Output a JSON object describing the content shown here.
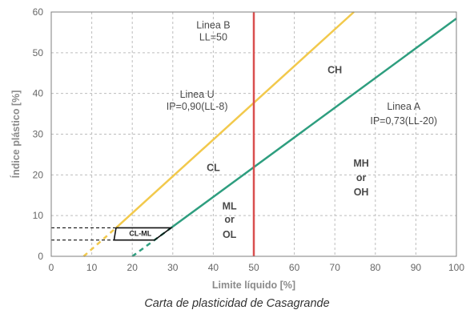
{
  "caption": "Carta de plasticidad de Casagrande",
  "chart_data": {
    "type": "line",
    "title": "",
    "xlabel": "Limite líquido [%]",
    "ylabel": "Índice plástico [%]",
    "xlim": [
      0,
      100
    ],
    "ylim": [
      0,
      60
    ],
    "xticks": [
      "0",
      "10",
      "20",
      "30",
      "40",
      "50",
      "60",
      "70",
      "80",
      "90",
      "100"
    ],
    "yticks": [
      "0",
      "10",
      "20",
      "30",
      "40",
      "50",
      "60"
    ],
    "grid": true,
    "series": [
      {
        "name": "Linea U",
        "equation": "IP=0,90(LL-8)",
        "color": "#f2c94c",
        "x": [
          16,
          74.7
        ],
        "y": [
          7,
          60
        ],
        "dashed_x": [
          8,
          16
        ],
        "dashed_y": [
          0,
          7
        ]
      },
      {
        "name": "Linea A",
        "equation": "IP=0,73(LL-20)",
        "color": "#2e9e7f",
        "x": [
          29.6,
          100
        ],
        "y": [
          7,
          58.4
        ],
        "dashed_x": [
          20,
          29.6
        ],
        "dashed_y": [
          0,
          7
        ]
      },
      {
        "name": "Linea B",
        "equation": "LL=50",
        "color": "#d94f4f",
        "x": [
          50,
          50
        ],
        "y": [
          0,
          60
        ]
      }
    ],
    "annotations": [
      {
        "text": "Linea B",
        "x": 40,
        "y": 56,
        "style": "anno"
      },
      {
        "text": "LL=50",
        "x": 40,
        "y": 53,
        "style": "anno"
      },
      {
        "text": "Linea U",
        "x": 36,
        "y": 39,
        "style": "anno"
      },
      {
        "text": "IP=0,90(LL-8)",
        "x": 36,
        "y": 36,
        "style": "anno"
      },
      {
        "text": "Linea A",
        "x": 87,
        "y": 36,
        "style": "anno"
      },
      {
        "text": "IP=0,73(LL-20)",
        "x": 87,
        "y": 32.5,
        "style": "anno"
      },
      {
        "text": "CH",
        "x": 70,
        "y": 45,
        "style": "anno-bold"
      },
      {
        "text": "CL",
        "x": 40,
        "y": 21,
        "style": "anno-bold"
      },
      {
        "text": "MH",
        "x": 76.5,
        "y": 22,
        "style": "anno-bold"
      },
      {
        "text": "or",
        "x": 76.5,
        "y": 18.5,
        "style": "anno-bold"
      },
      {
        "text": "OH",
        "x": 76.5,
        "y": 15,
        "style": "anno-bold"
      },
      {
        "text": "ML",
        "x": 44,
        "y": 11.5,
        "style": "anno-bold"
      },
      {
        "text": "or",
        "x": 44,
        "y": 8.3,
        "style": "anno-bold"
      },
      {
        "text": "OL",
        "x": 44,
        "y": 4.5,
        "style": "anno-bold"
      },
      {
        "text": "CL-ML",
        "x": 22,
        "y": 5,
        "style": "anno-small"
      }
    ],
    "zone_cl_ml": {
      "label": "CL-ML",
      "x": [
        16,
        29.6,
        25.5,
        15.5,
        16
      ],
      "y": [
        7,
        7,
        4,
        4,
        7
      ]
    },
    "reference_lines": [
      {
        "y": 7,
        "x_from": 0,
        "x_to": 16
      },
      {
        "y": 4,
        "x_from": 0,
        "x_to": 15.5
      }
    ]
  }
}
